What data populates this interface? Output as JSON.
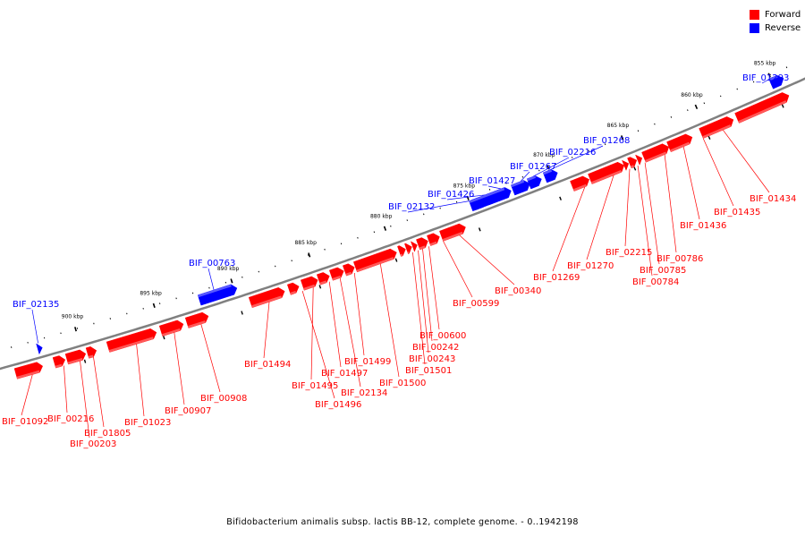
{
  "legend": [
    {
      "label": "Forward",
      "color": "#ff0000"
    },
    {
      "label": "Reverse",
      "color": "#0000ff"
    }
  ],
  "caption": "Bifidobacterium animalis subsp. lactis BB-12, complete genome. - 0..1942198",
  "colors": {
    "forward": "#ff0000",
    "reverse": "#0000ff",
    "backbone": "#808080"
  },
  "ticks": [
    "855 kbp",
    "860 kbp",
    "865 kbp",
    "870 kbp",
    "875 kbp",
    "880 kbp",
    "885 kbp",
    "890 kbp",
    "895 kbp",
    "900 kbp"
  ],
  "genes": [
    {
      "name": "BIF_01293",
      "strand": "reverse"
    },
    {
      "name": "BIF_01268",
      "strand": "reverse"
    },
    {
      "name": "BIF_02216",
      "strand": "reverse"
    },
    {
      "name": "BIF_01267",
      "strand": "reverse"
    },
    {
      "name": "BIF_01427",
      "strand": "reverse"
    },
    {
      "name": "BIF_01426",
      "strand": "reverse"
    },
    {
      "name": "BIF_02132",
      "strand": "reverse"
    },
    {
      "name": "BIF_00763",
      "strand": "reverse"
    },
    {
      "name": "BIF_02135",
      "strand": "reverse"
    },
    {
      "name": "BIF_01434",
      "strand": "forward"
    },
    {
      "name": "BIF_01435",
      "strand": "forward"
    },
    {
      "name": "BIF_01436",
      "strand": "forward"
    },
    {
      "name": "BIF_00786",
      "strand": "forward"
    },
    {
      "name": "BIF_00785",
      "strand": "forward"
    },
    {
      "name": "BIF_00784",
      "strand": "forward"
    },
    {
      "name": "BIF_02215",
      "strand": "forward"
    },
    {
      "name": "BIF_01270",
      "strand": "forward"
    },
    {
      "name": "BIF_01269",
      "strand": "forward"
    },
    {
      "name": "BIF_00340",
      "strand": "forward"
    },
    {
      "name": "BIF_00599",
      "strand": "forward"
    },
    {
      "name": "BIF_00600",
      "strand": "forward"
    },
    {
      "name": "BIF_00242",
      "strand": "forward"
    },
    {
      "name": "BIF_00243",
      "strand": "forward"
    },
    {
      "name": "BIF_01501",
      "strand": "forward"
    },
    {
      "name": "BIF_01500",
      "strand": "forward"
    },
    {
      "name": "BIF_01499",
      "strand": "forward"
    },
    {
      "name": "BIF_02134",
      "strand": "forward"
    },
    {
      "name": "BIF_01497",
      "strand": "forward"
    },
    {
      "name": "BIF_01495",
      "strand": "forward"
    },
    {
      "name": "BIF_01496",
      "strand": "forward"
    },
    {
      "name": "BIF_01494",
      "strand": "forward"
    },
    {
      "name": "BIF_00908",
      "strand": "forward"
    },
    {
      "name": "BIF_00907",
      "strand": "forward"
    },
    {
      "name": "BIF_01023",
      "strand": "forward"
    },
    {
      "name": "BIF_01805",
      "strand": "forward"
    },
    {
      "name": "BIF_00203",
      "strand": "forward"
    },
    {
      "name": "BIF_00216",
      "strand": "forward"
    },
    {
      "name": "BIF_01092",
      "strand": "forward"
    }
  ]
}
